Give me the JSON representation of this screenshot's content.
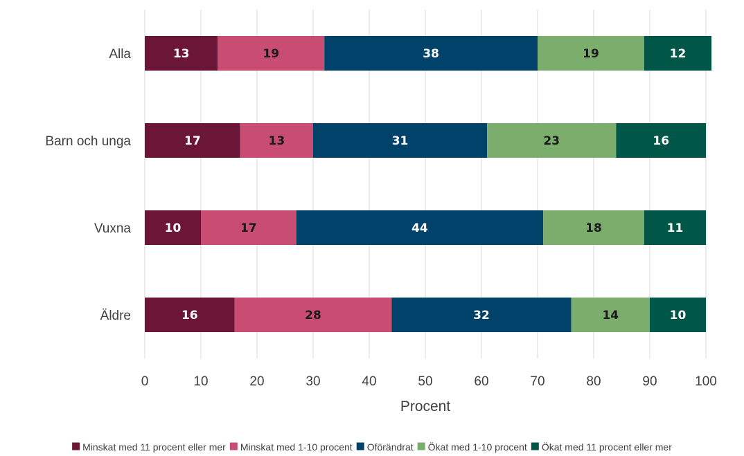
{
  "chart_data": {
    "type": "bar",
    "orientation": "horizontal",
    "stacked": true,
    "title": "",
    "xlabel": "Procent",
    "ylabel": "",
    "xlim": [
      0,
      100
    ],
    "xticks": [
      "0",
      "10",
      "20",
      "30",
      "40",
      "50",
      "60",
      "70",
      "80",
      "90",
      "100"
    ],
    "grid": "vertical",
    "legend_position": "bottom",
    "categories": [
      "Alla",
      "Barn och unga",
      "Vuxna",
      "Äldre"
    ],
    "series": [
      {
        "name": "Minskat med 11 procent eller mer",
        "color": "#6b1537",
        "label_color": "#ffffff",
        "values": [
          13,
          17,
          10,
          16
        ]
      },
      {
        "name": "Minskat med 1-10 procent",
        "color": "#c94c72",
        "label_color": "#1a1a1a",
        "values": [
          19,
          13,
          17,
          28
        ]
      },
      {
        "name": "Oförändrat",
        "color": "#00426a",
        "label_color": "#ffffff",
        "values": [
          38,
          31,
          44,
          32
        ]
      },
      {
        "name": "Ökat med 1-10 procent",
        "color": "#7bad6c",
        "label_color": "#1a1a1a",
        "values": [
          19,
          23,
          18,
          14
        ]
      },
      {
        "name": "Ökat med 11 procent eller mer",
        "color": "#005747",
        "label_color": "#ffffff",
        "values": [
          12,
          16,
          11,
          10
        ]
      }
    ]
  }
}
